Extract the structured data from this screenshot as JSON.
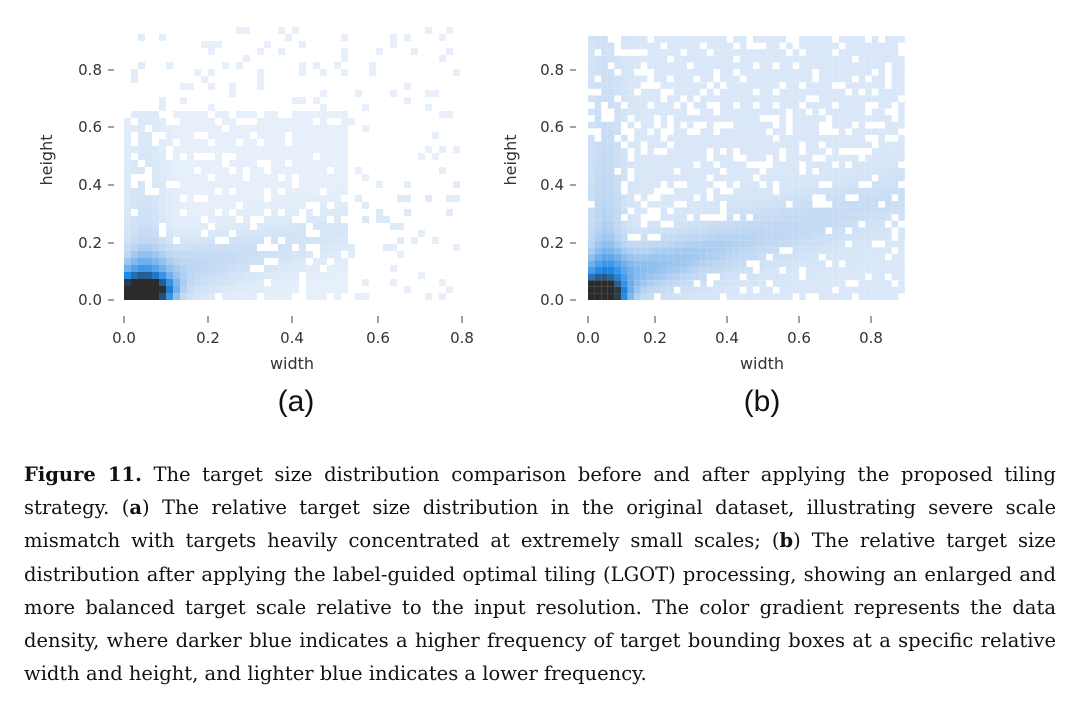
{
  "chart_data": [
    {
      "type": "heatmap",
      "panel_label": "(a)",
      "xlabel": "width",
      "ylabel": "height",
      "x_ticks": [
        "0.0",
        "0.2",
        "0.4",
        "0.6",
        "0.8"
      ],
      "y_ticks": [
        "0.0",
        "0.2",
        "0.4",
        "0.6",
        "0.8"
      ],
      "xlim": [
        0,
        0.86
      ],
      "ylim": [
        0,
        0.93
      ],
      "color_scale": [
        "#ffffff",
        "#bdd6f2",
        "#1e88e5",
        "#2b2b2b"
      ],
      "distribution": {
        "peak_width": 0.05,
        "peak_height": 0.03,
        "bulk_max_width": 0.55,
        "bulk_max_height": 0.65,
        "outlier_max_width": 0.83,
        "outlier_max_height": 0.93
      }
    },
    {
      "type": "heatmap",
      "panel_label": "(b)",
      "xlabel": "width",
      "ylabel": "height",
      "x_ticks": [
        "0.0",
        "0.2",
        "0.4",
        "0.6",
        "0.8"
      ],
      "y_ticks": [
        "0.0",
        "0.2",
        "0.4",
        "0.6",
        "0.8"
      ],
      "xlim": [
        0,
        0.96
      ],
      "ylim": [
        0,
        0.96
      ],
      "color_scale": [
        "#ffffff",
        "#bdd6f2",
        "#1e88e5",
        "#2b2b2b"
      ],
      "distribution": {
        "peak_width": 0.03,
        "peak_height": 0.02,
        "bulk_max_width": 0.93,
        "bulk_max_height": 0.93,
        "outlier_max_width": 0.95,
        "outlier_max_height": 0.95
      }
    }
  ],
  "caption": {
    "label": "Figure 11.",
    "intro": "The target size distribution comparison before and after applying the proposed tiling strategy.",
    "part_a_open": "(",
    "part_a_letter": "a",
    "part_a_close": ")",
    "part_a_text": "The relative target size distribution in the original dataset, illustrating severe scale mismatch with targets heavily concentrated at extremely small scales;",
    "part_b_open": "(",
    "part_b_letter": "b",
    "part_b_close": ")",
    "part_b_text": "The relative target size distribution after applying the label-guided optimal tiling (LGOT) processing, showing an enlarged and more balanced target scale relative to the input resolution. The color gradient represents the data density, where darker blue indicates a higher frequency of target bounding boxes at a specific relative width and height, and lighter blue indicates a lower frequency."
  }
}
